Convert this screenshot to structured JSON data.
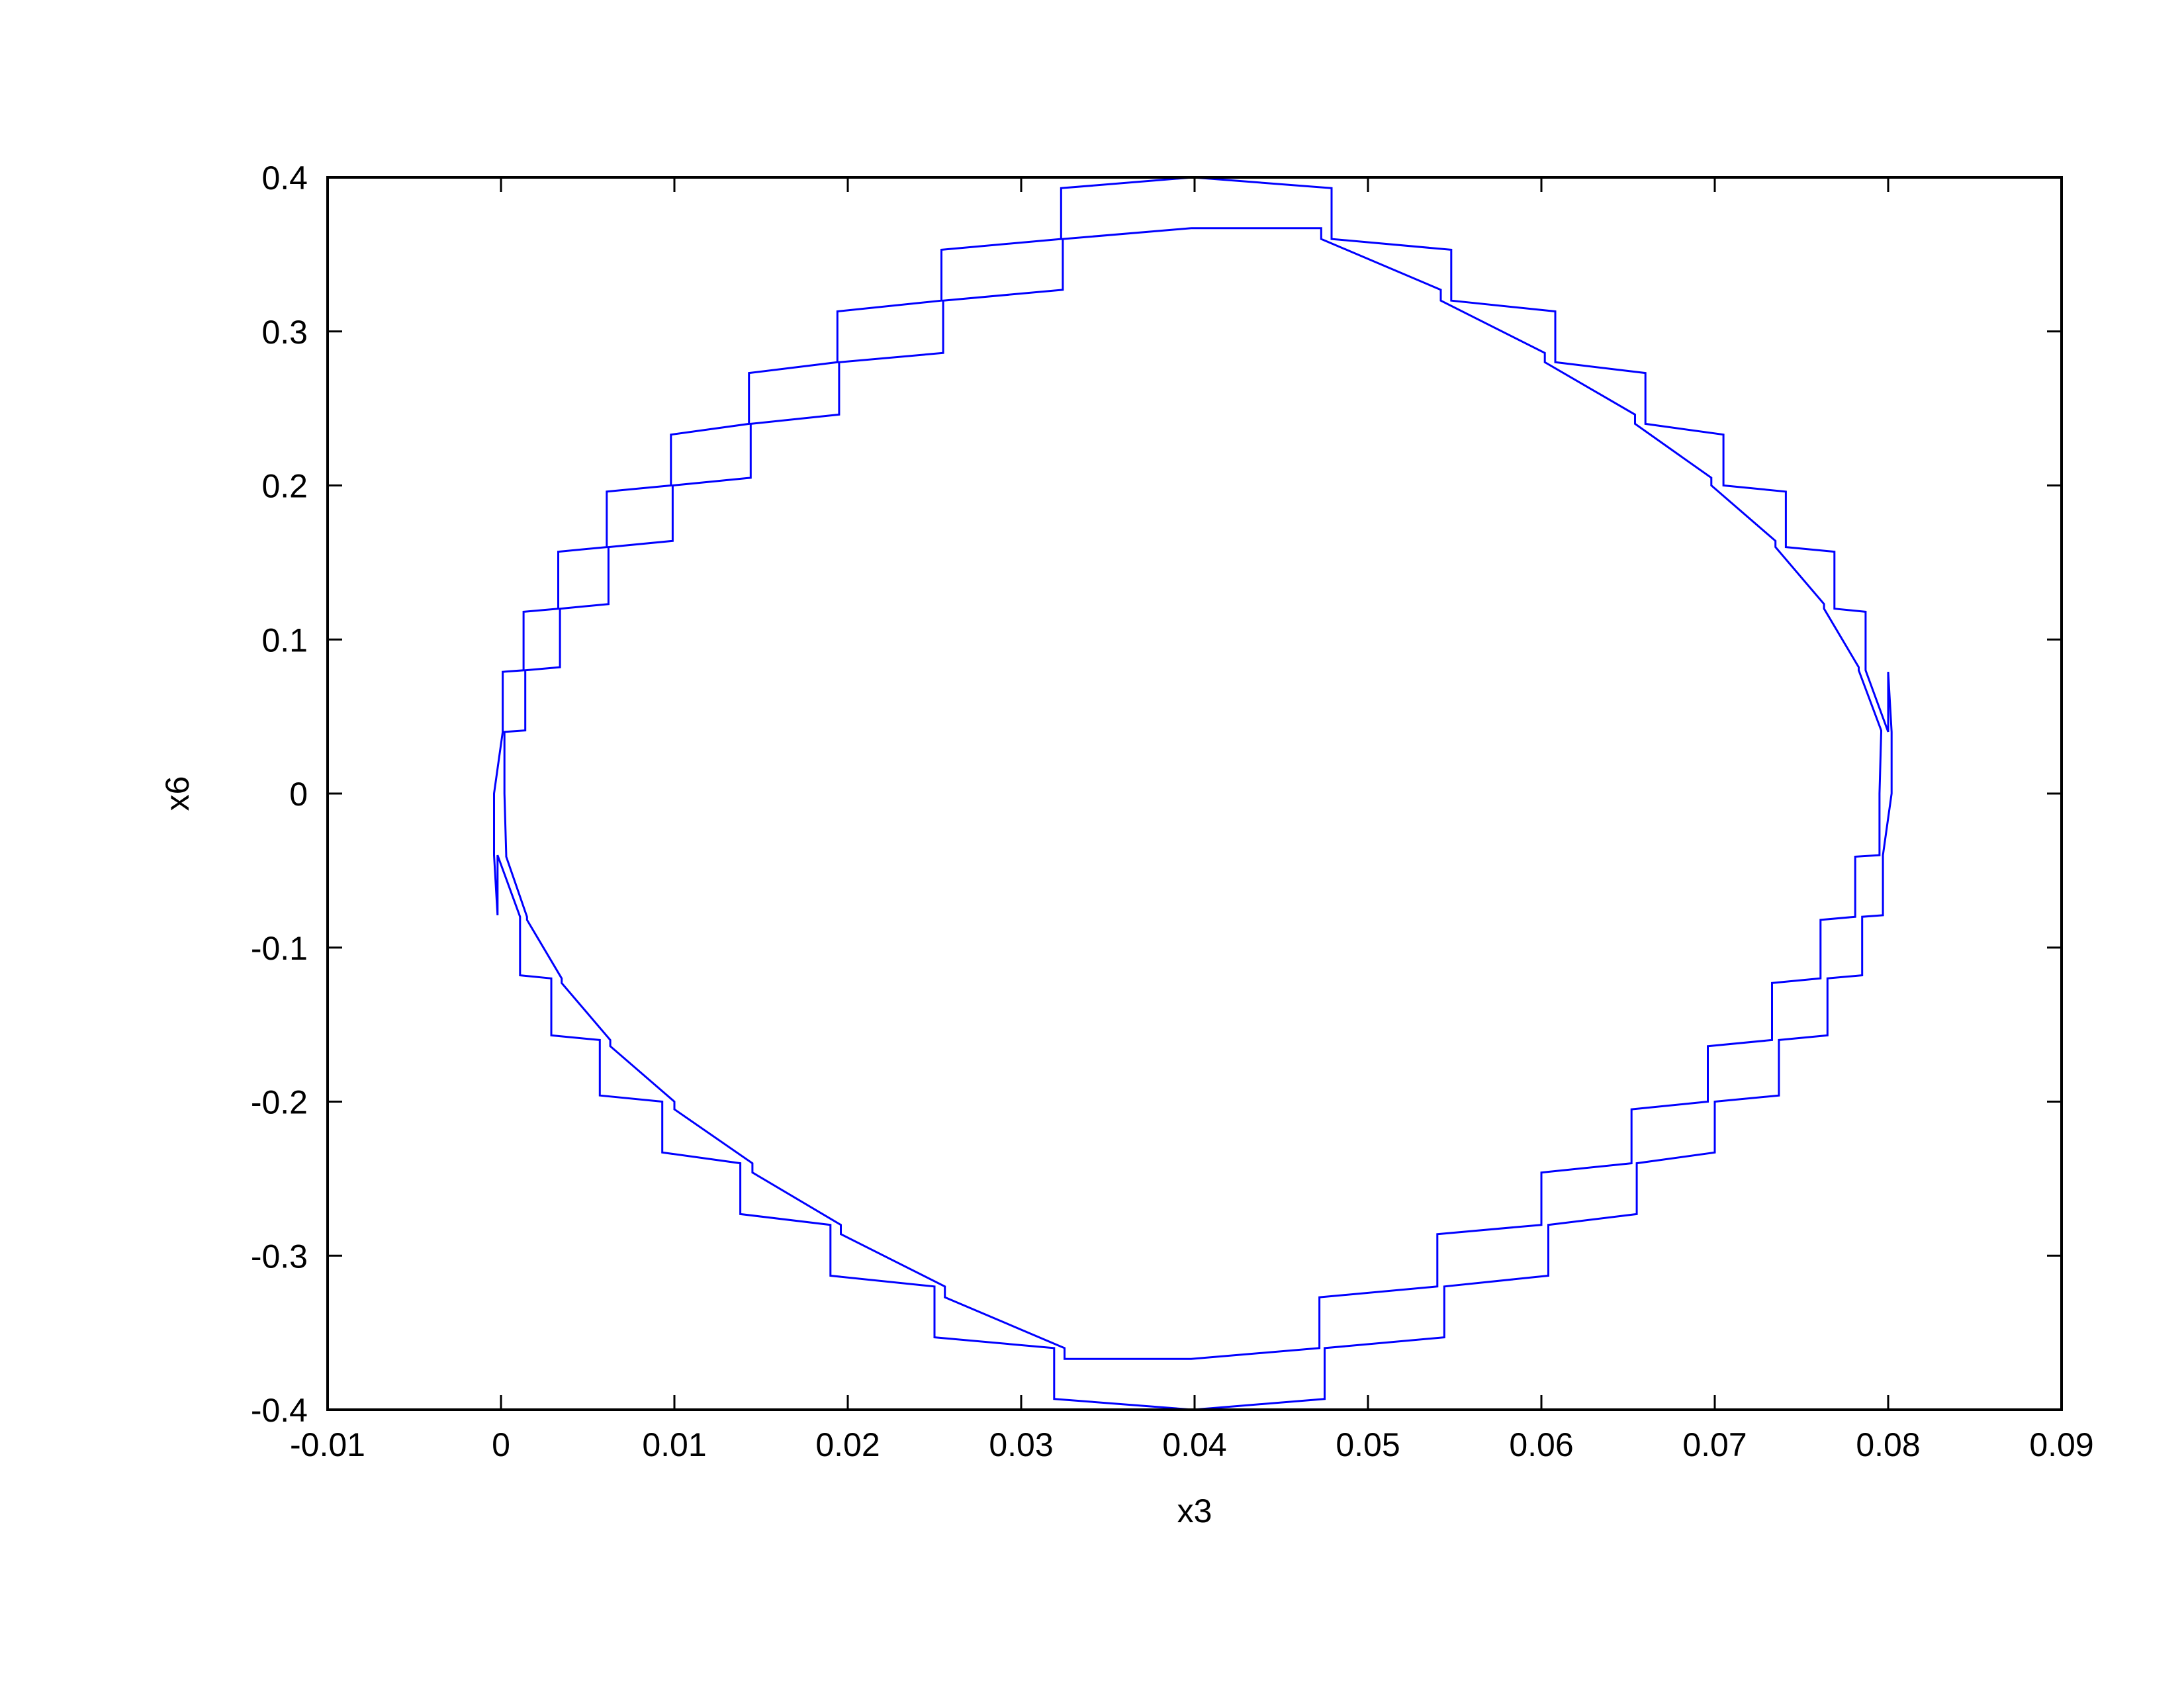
{
  "chart_data": {
    "type": "line",
    "title": "",
    "xlabel": "x3",
    "ylabel": "x6",
    "xlim": [
      -0.01,
      0.09
    ],
    "ylim": [
      -0.4,
      0.4
    ],
    "xticks": [
      "-0.01",
      "0",
      "0.01",
      "0.02",
      "0.03",
      "0.04",
      "0.05",
      "0.06",
      "0.07",
      "0.08",
      "0.09"
    ],
    "yticks": [
      "-0.4",
      "-0.3",
      "-0.2",
      "-0.1",
      "0",
      "0.1",
      "0.2",
      "0.3",
      "0.4"
    ],
    "grid": false,
    "legend": "none",
    "color": "#0000ff",
    "series": [
      {
        "x": [
          0.0399,
          0.0323,
          0.0323,
          0.0254,
          0.0254,
          0.0194,
          0.0194,
          0.0143,
          0.0143,
          0.0098,
          0.0098,
          0.0061,
          0.0061,
          0.0033,
          0.0033,
          0.0013,
          0.0013,
          0.0001,
          0.0001,
          -0.0004,
          -0.0004,
          -0.0002,
          -0.0002,
          0.0011,
          0.0011,
          0.0029,
          0.0029,
          0.0057,
          0.0057,
          0.0093,
          0.0093,
          0.0138,
          0.0138,
          0.019,
          0.019,
          0.025,
          0.025,
          0.0319,
          0.0319,
          0.0399,
          0.0475,
          0.0475,
          0.0544,
          0.0544,
          0.0604,
          0.0604,
          0.0655,
          0.0655,
          0.07,
          0.07,
          0.0737,
          0.0737,
          0.0765,
          0.0765,
          0.0785,
          0.0785,
          0.0797,
          0.0797,
          0.0802,
          0.0802,
          0.08,
          0.08,
          0.0787,
          0.0787,
          0.0769,
          0.0769,
          0.0741,
          0.0741,
          0.0705,
          0.0705,
          0.066,
          0.066,
          0.0608,
          0.0608,
          0.0548,
          0.0548,
          0.0479,
          0.0479,
          0.0399
        ],
        "y": [
          0.4,
          0.393,
          0.36,
          0.353,
          0.32,
          0.313,
          0.28,
          0.273,
          0.24,
          0.233,
          0.2,
          0.196,
          0.16,
          0.157,
          0.12,
          0.118,
          0.08,
          0.079,
          0.04,
          0.0,
          -0.04,
          -0.079,
          -0.04,
          -0.08,
          -0.118,
          -0.12,
          -0.157,
          -0.16,
          -0.196,
          -0.2,
          -0.233,
          -0.24,
          -0.273,
          -0.28,
          -0.313,
          -0.32,
          -0.353,
          -0.36,
          -0.393,
          -0.4,
          -0.393,
          -0.36,
          -0.353,
          -0.32,
          -0.313,
          -0.28,
          -0.273,
          -0.24,
          -0.233,
          -0.2,
          -0.196,
          -0.16,
          -0.157,
          -0.12,
          -0.118,
          -0.08,
          -0.079,
          -0.04,
          0.0,
          0.04,
          0.079,
          0.04,
          0.08,
          0.118,
          0.12,
          0.157,
          0.16,
          0.196,
          0.2,
          0.233,
          0.24,
          0.273,
          0.28,
          0.313,
          0.32,
          0.353,
          0.36,
          0.393,
          0.4
        ]
      },
      {
        "x": [
          0.0398,
          0.0324,
          0.0324,
          0.0255,
          0.0255,
          0.0195,
          0.0195,
          0.0144,
          0.0144,
          0.0099,
          0.0099,
          0.0062,
          0.0062,
          0.0034,
          0.0034,
          0.0014,
          0.0014,
          0.0002,
          0.0002,
          0.0003,
          0.0003,
          0.0015,
          0.0015,
          0.0035,
          0.0035,
          0.0063,
          0.0063,
          0.01,
          0.01,
          0.0145,
          0.0145,
          0.0196,
          0.0196,
          0.0256,
          0.0256,
          0.0325,
          0.0325,
          0.0398,
          0.0472,
          0.0472,
          0.054,
          0.054,
          0.06,
          0.06,
          0.0652,
          0.0652,
          0.0696,
          0.0696,
          0.0733,
          0.0733,
          0.0761,
          0.0761,
          0.0781,
          0.0781,
          0.0795,
          0.0795,
          0.0796,
          0.0796,
          0.0783,
          0.0783,
          0.0763,
          0.0763,
          0.0735,
          0.0735,
          0.0698,
          0.0698,
          0.0654,
          0.0654,
          0.0602,
          0.0602,
          0.0542,
          0.0542,
          0.0473,
          0.0473,
          0.0398
        ],
        "y": [
          0.367,
          0.36,
          0.327,
          0.32,
          0.286,
          0.28,
          0.246,
          0.24,
          0.205,
          0.2,
          0.164,
          0.16,
          0.123,
          0.12,
          0.082,
          0.08,
          0.041,
          0.04,
          0.0,
          -0.04,
          -0.041,
          -0.08,
          -0.082,
          -0.12,
          -0.123,
          -0.16,
          -0.164,
          -0.2,
          -0.205,
          -0.24,
          -0.246,
          -0.28,
          -0.286,
          -0.32,
          -0.327,
          -0.36,
          -0.367,
          -0.367,
          -0.36,
          -0.327,
          -0.32,
          -0.286,
          -0.28,
          -0.246,
          -0.24,
          -0.205,
          -0.2,
          -0.164,
          -0.16,
          -0.123,
          -0.12,
          -0.082,
          -0.08,
          -0.041,
          -0.04,
          0.0,
          0.04,
          0.041,
          0.08,
          0.082,
          0.12,
          0.123,
          0.16,
          0.164,
          0.2,
          0.205,
          0.24,
          0.246,
          0.28,
          0.286,
          0.32,
          0.327,
          0.36,
          0.367,
          0.367
        ]
      }
    ]
  }
}
